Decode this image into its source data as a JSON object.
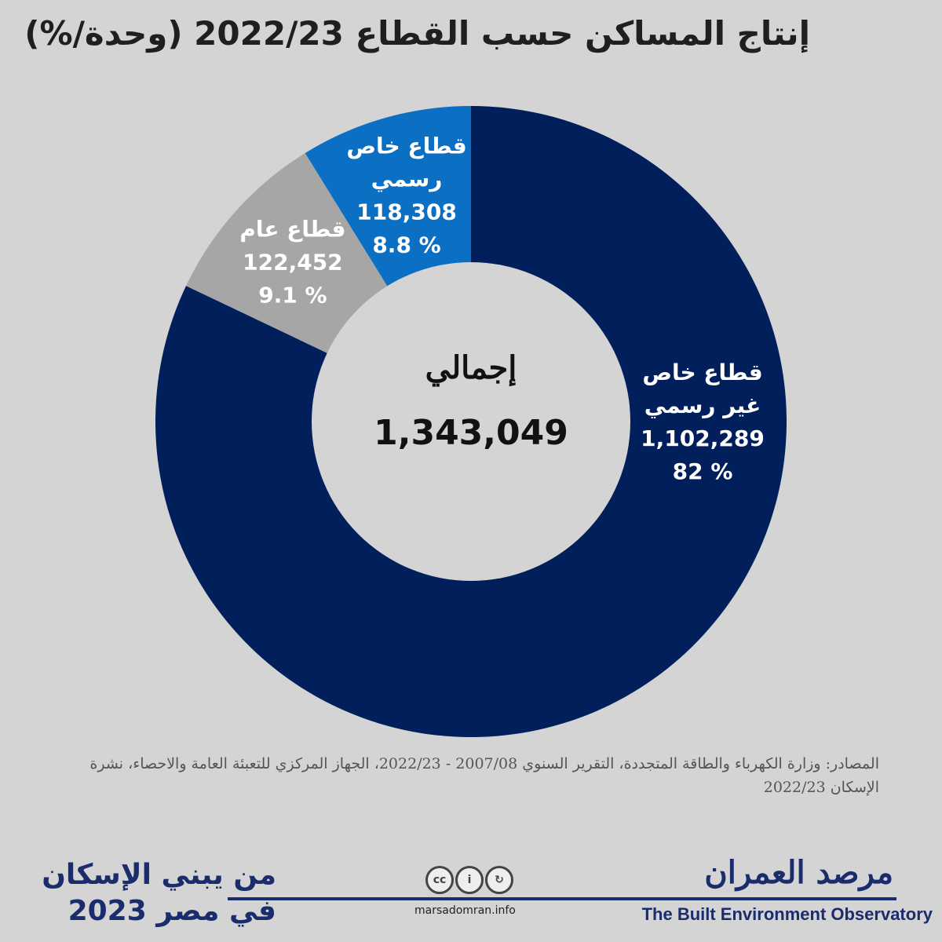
{
  "title": "إنتاج المساكن حسب القطاع 2022/23 (وحدة/%)",
  "chart_data": {
    "type": "pie",
    "center_caption": "إجمالي",
    "total": "1,343,049",
    "slices": [
      {
        "name_line1": "قطاع خاص",
        "name_line2": "غير رسمي",
        "value": 1102289,
        "value_label": "1,102,289",
        "percent": 82,
        "percent_label": "82 %",
        "color": "#001f5b"
      },
      {
        "name_line1": "قطاع عام",
        "name_line2": "",
        "value": 122452,
        "value_label": "122,452",
        "percent": 9.1,
        "percent_label": "9.1 %",
        "color": "#a6a6a6"
      },
      {
        "name_line1": "قطاع خاص",
        "name_line2": "رسمي",
        "value": 118308,
        "value_label": "118,308",
        "percent": 8.8,
        "percent_label": "8.8 %",
        "color": "#0b6fc4"
      }
    ]
  },
  "source_text": "المصادر: وزارة الكهرباء والطاقة المتجددة، التقرير السنوي 2007/08 - 2022/23، الجهاز المركزي للتعبئة العامة والاحصاء، نشرة الإسكان 2022/23",
  "footer": {
    "series_line1": "من يبني الإسكان",
    "series_line2": "في مصر 2023",
    "website": "marsadomran.info",
    "brand_ar": "مرصد العمران",
    "brand_en": "The Built Environment Observatory",
    "license_icons": [
      "cc-icon",
      "by-icon",
      "sa-icon"
    ]
  }
}
